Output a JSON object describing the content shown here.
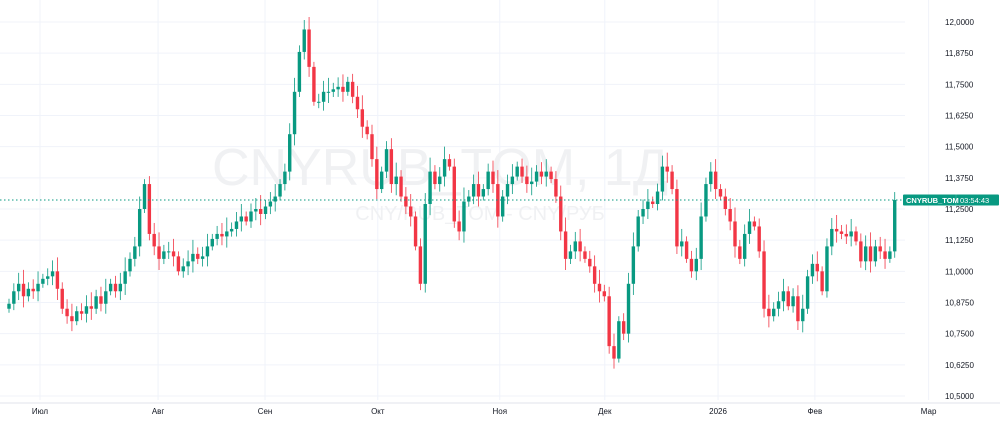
{
  "chart_data": {
    "type": "candlestick",
    "symbol": "CNYRUB_TOM",
    "watermark_title": "CNYRUB_TOM, 1Д",
    "watermark_subtitle": "CNY/RUB_TOM - CNY/РУБ",
    "timeframe": "1Д",
    "note": "open of each candle = previous close",
    "first_open": 10.85,
    "close": [
      10.87,
      10.92,
      10.95,
      10.9,
      10.93,
      10.92,
      10.95,
      10.97,
      10.98,
      11.0,
      10.93,
      10.85,
      10.82,
      10.8,
      10.84,
      10.83,
      10.86,
      10.85,
      10.9,
      10.87,
      10.92,
      10.95,
      10.92,
      10.95,
      11.0,
      11.05,
      11.1,
      11.25,
      11.35,
      11.15,
      11.1,
      11.05,
      11.08,
      11.08,
      11.06,
      11.0,
      11.02,
      11.04,
      11.07,
      11.05,
      11.06,
      11.1,
      11.13,
      11.15,
      11.14,
      11.16,
      11.17,
      11.2,
      11.22,
      11.2,
      11.24,
      11.25,
      11.23,
      11.26,
      11.28,
      11.3,
      11.35,
      11.4,
      11.55,
      11.72,
      11.88,
      11.97,
      11.82,
      11.68,
      11.68,
      11.72,
      11.72,
      11.73,
      11.74,
      11.72,
      11.76,
      11.7,
      11.65,
      11.58,
      11.55,
      11.45,
      11.33,
      11.4,
      11.49,
      11.35,
      11.38,
      11.3,
      11.26,
      11.22,
      11.1,
      10.95,
      11.27,
      11.4,
      11.35,
      11.38,
      11.45,
      11.42,
      11.2,
      11.16,
      11.28,
      11.3,
      11.35,
      11.3,
      11.33,
      11.4,
      11.35,
      11.22,
      11.3,
      11.35,
      11.38,
      11.42,
      11.38,
      11.35,
      11.36,
      11.4,
      11.38,
      11.4,
      11.37,
      11.3,
      11.16,
      11.05,
      11.08,
      11.12,
      11.08,
      11.05,
      11.02,
      10.95,
      10.92,
      10.9,
      10.7,
      10.65,
      10.8,
      10.75,
      10.95,
      11.1,
      11.22,
      11.25,
      11.28,
      11.27,
      11.32,
      11.42,
      11.4,
      11.33,
      11.1,
      11.12,
      11.05,
      11.0,
      11.05,
      11.22,
      11.35,
      11.4,
      11.33,
      11.3,
      11.25,
      11.2,
      11.1,
      11.05,
      11.15,
      11.2,
      11.18,
      11.08,
      10.85,
      10.82,
      10.85,
      10.88,
      10.92,
      10.86,
      10.9,
      10.8,
      10.85,
      10.98,
      11.03,
      11.0,
      10.92,
      11.1,
      11.17,
      11.16,
      11.15,
      11.14,
      11.16,
      11.12,
      11.04,
      11.1,
      11.04,
      11.1,
      11.08,
      11.05,
      11.08,
      11.286
    ],
    "ylim": [
      10.5,
      12.0
    ],
    "y_ticks": [
      "10,5000",
      "10,6250",
      "10,7500",
      "10,8750",
      "11,0000",
      "11,1250",
      "11,2500",
      "11,3750",
      "11,5000",
      "11,6250",
      "11,7500",
      "11,8750",
      "12,0000"
    ],
    "y_tick_values": [
      10.5,
      10.625,
      10.75,
      10.875,
      11.0,
      11.125,
      11.25,
      11.375,
      11.5,
      11.625,
      11.75,
      11.875,
      12.0
    ],
    "x_ticks": [
      {
        "label": "Июл",
        "index": 6.4
      },
      {
        "label": "Авг",
        "index": 30.8
      },
      {
        "label": "Сен",
        "index": 52.9
      },
      {
        "label": "Окт",
        "index": 76.2
      },
      {
        "label": "Ноя",
        "index": 101.4
      },
      {
        "label": "Дек",
        "index": 123.1
      },
      {
        "label": "2026",
        "index": 146.5
      },
      {
        "label": "Фев",
        "index": 166.5
      },
      {
        "label": "Мар",
        "index": 190
      }
    ],
    "last_price": 11.286,
    "last_price_label": "CNYRUB_TOM",
    "countdown": "03:54:43",
    "colors": {
      "up": "#089981",
      "down": "#f23645",
      "grid": "#f0f3fa"
    }
  }
}
